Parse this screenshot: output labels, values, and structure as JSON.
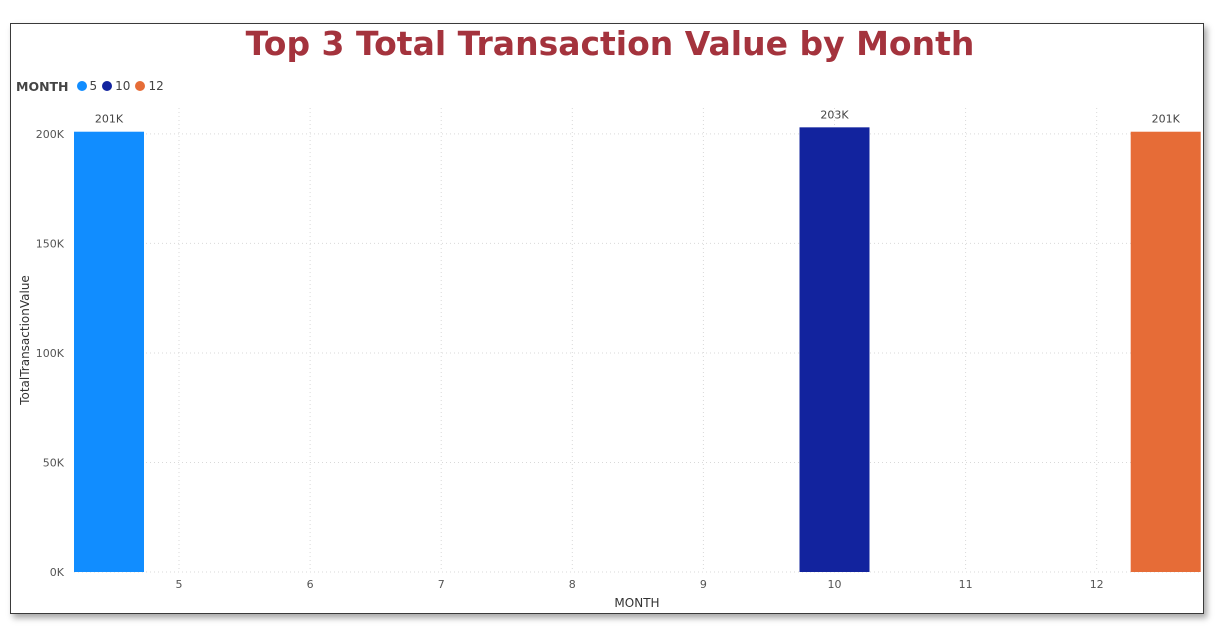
{
  "chart_data": {
    "type": "bar",
    "title": "Top 3 Total Transaction Value by Month",
    "xlabel": "MONTH",
    "ylabel": "TotalTransactionValue",
    "legend_title": "MONTH",
    "legend_position": "top-left",
    "x_ticks": [
      "5",
      "6",
      "7",
      "8",
      "9",
      "10",
      "11",
      "12"
    ],
    "y_ticks": [
      "0K",
      "50K",
      "100K",
      "150K",
      "200K"
    ],
    "ylim": [
      0,
      210000
    ],
    "grid": true,
    "series": [
      {
        "name": "5",
        "x": 5,
        "value": 201000,
        "label": "201K",
        "color": "#118dff"
      },
      {
        "name": "10",
        "x": 10,
        "value": 203000,
        "label": "203K",
        "color": "#12239e"
      },
      {
        "name": "12",
        "x": 12,
        "value": 201000,
        "label": "201K",
        "color": "#e66c37"
      }
    ]
  },
  "colors": {
    "title": "#a4333d",
    "grid": "#d9d9d9"
  }
}
